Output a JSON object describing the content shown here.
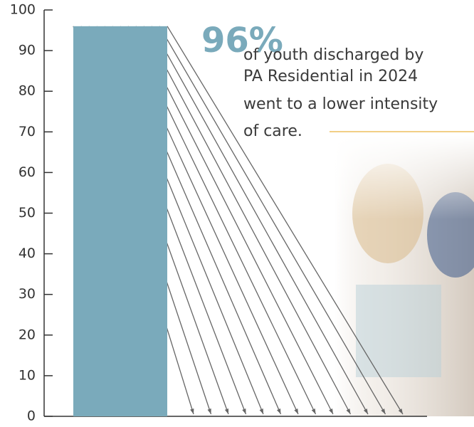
{
  "chart_data": {
    "type": "bar",
    "categories": [
      null
    ],
    "values": [
      96
    ],
    "value_labels": [
      "96%"
    ],
    "color": "#7aaabb",
    "ylim": [
      0,
      100
    ],
    "yticks": [
      0,
      10,
      20,
      30,
      40,
      50,
      60,
      70,
      80,
      90,
      100
    ],
    "annotation": [
      "of youth discharged by",
      "PA Residential in 2024",
      "went to a lower intensity",
      "of care."
    ]
  }
}
